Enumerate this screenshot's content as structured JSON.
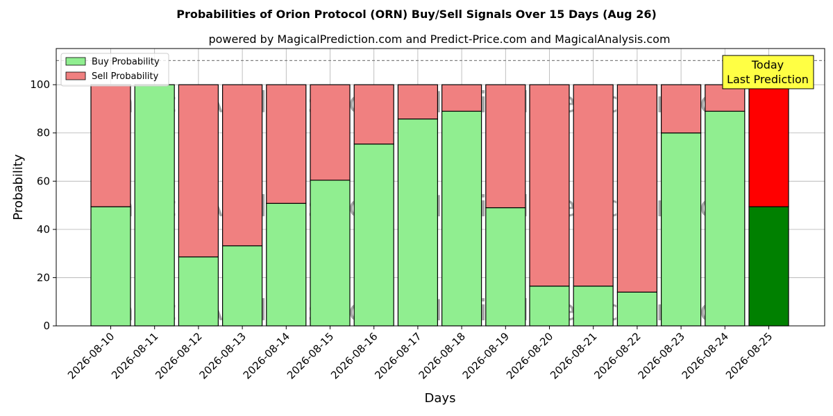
{
  "chart_data": {
    "type": "bar",
    "stacked": true,
    "title": "Probabilities of Orion Protocol (ORN) Buy/Sell Signals Over 15 Days (Aug 26)",
    "subtitle": "powered by MagicalPrediction.com and Predict-Price.com and MagicalAnalysis.com",
    "xlabel": "Days",
    "ylabel": "Probability",
    "ylim": [
      0,
      115
    ],
    "yticks": [
      0,
      20,
      40,
      60,
      80,
      100
    ],
    "reference_line": 110,
    "grid": true,
    "legend_position": "top-left",
    "categories": [
      "2026-08-10",
      "2026-08-11",
      "2026-08-12",
      "2026-08-13",
      "2026-08-14",
      "2026-08-15",
      "2026-08-16",
      "2026-08-17",
      "2026-08-18",
      "2026-08-19",
      "2026-08-20",
      "2026-08-21",
      "2026-08-22",
      "2026-08-23",
      "2026-08-24",
      "2026-08-25"
    ],
    "series": [
      {
        "name": "Buy Probability",
        "color": "#90ee90",
        "values": [
          49.4,
          100,
          28.6,
          33.2,
          50.8,
          60.4,
          75.4,
          85.8,
          89.0,
          49.0,
          16.5,
          16.5,
          14.0,
          80.0,
          89.0,
          49.4
        ]
      },
      {
        "name": "Sell Probability",
        "color": "#f08080",
        "values": [
          50.6,
          0,
          71.4,
          66.8,
          49.2,
          39.6,
          24.6,
          14.2,
          11.0,
          51.0,
          83.5,
          83.5,
          86.0,
          20.0,
          11.0,
          50.6
        ]
      }
    ],
    "highlight": {
      "index": 15,
      "buy_color": "#008000",
      "sell_color": "#ff0000"
    },
    "annotation": {
      "line1": "Today",
      "line2": "Last Prediction",
      "bg": "#ffff44"
    },
    "watermark": [
      "MagicalAnalysis.com",
      "MagicalPrediction.com"
    ]
  }
}
